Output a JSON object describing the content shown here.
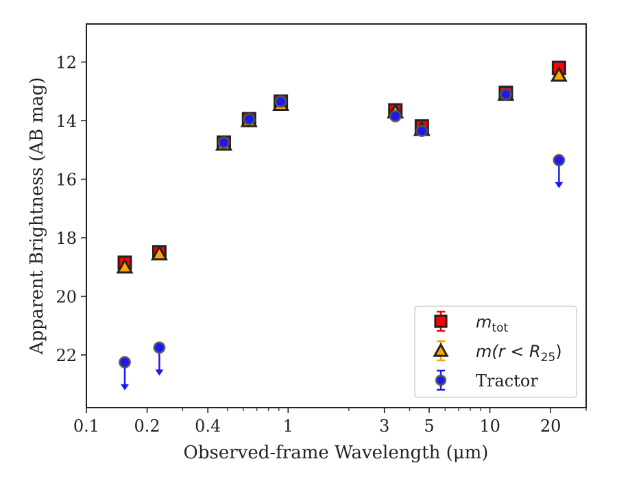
{
  "chart_data": {
    "type": "scatter",
    "xscale": "log",
    "xlim": [
      0.1,
      30
    ],
    "ylim": [
      10.7,
      23.8
    ],
    "yinverted": true,
    "xlabel": "Observed-frame Wavelength (μm)",
    "ylabel": "Apparent Brightness (AB mag)",
    "x_ticks": [
      {
        "value": 0.1,
        "label": "0.1"
      },
      {
        "value": 0.2,
        "label": "0.2"
      },
      {
        "value": 0.4,
        "label": "0.4"
      },
      {
        "value": 1,
        "label": "1"
      },
      {
        "value": 3,
        "label": "3"
      },
      {
        "value": 5,
        "label": "5"
      },
      {
        "value": 10,
        "label": "10"
      },
      {
        "value": 20,
        "label": "20"
      }
    ],
    "x_minor_ticks": [
      0.3,
      0.5,
      0.6,
      0.7,
      0.8,
      0.9,
      2,
      4,
      6,
      7,
      8,
      9,
      30
    ],
    "y_ticks": [
      {
        "value": 12,
        "label": "12"
      },
      {
        "value": 14,
        "label": "14"
      },
      {
        "value": 16,
        "label": "16"
      },
      {
        "value": 18,
        "label": "18"
      },
      {
        "value": 20,
        "label": "20"
      },
      {
        "value": 22,
        "label": "22"
      }
    ],
    "legend_position": "bottom-right",
    "series": [
      {
        "name": "m_tot",
        "marker": "square",
        "color": "#ff0000",
        "edge_color": "#222222",
        "points": [
          {
            "x": 0.155,
            "y": 18.85
          },
          {
            "x": 0.23,
            "y": 18.5
          },
          {
            "x": 0.48,
            "y": 14.75
          },
          {
            "x": 0.64,
            "y": 13.95
          },
          {
            "x": 0.92,
            "y": 13.35
          },
          {
            "x": 3.4,
            "y": 13.65
          },
          {
            "x": 4.6,
            "y": 14.2
          },
          {
            "x": 12.0,
            "y": 13.05
          },
          {
            "x": 22.0,
            "y": 12.2
          }
        ]
      },
      {
        "name": "m(r<R25)",
        "marker": "triangle",
        "color": "#ffa500",
        "edge_color": "#222222",
        "points": [
          {
            "x": 0.155,
            "y": 19.0
          },
          {
            "x": 0.23,
            "y": 18.55
          },
          {
            "x": 0.48,
            "y": 14.8
          },
          {
            "x": 0.64,
            "y": 14.0
          },
          {
            "x": 0.92,
            "y": 13.45
          },
          {
            "x": 3.4,
            "y": 13.7
          },
          {
            "x": 4.6,
            "y": 14.3
          },
          {
            "x": 12.0,
            "y": 13.1
          },
          {
            "x": 22.0,
            "y": 12.45
          }
        ]
      },
      {
        "name": "Tractor",
        "marker": "circle",
        "color": "#1a1aee",
        "edge_color": "#555555",
        "points": [
          {
            "x": 0.155,
            "y": 22.25,
            "upper_limit": true
          },
          {
            "x": 0.23,
            "y": 21.75,
            "upper_limit": true
          },
          {
            "x": 0.48,
            "y": 14.75
          },
          {
            "x": 0.64,
            "y": 13.95
          },
          {
            "x": 0.92,
            "y": 13.35
          },
          {
            "x": 3.4,
            "y": 13.85
          },
          {
            "x": 4.6,
            "y": 14.35
          },
          {
            "x": 12.0,
            "y": 13.1
          },
          {
            "x": 22.0,
            "y": 15.35,
            "upper_limit": true
          }
        ]
      }
    ],
    "legend": {
      "entries": [
        {
          "series": "m_tot",
          "label_main": "m",
          "label_sub": "tot",
          "label_rest": ""
        },
        {
          "series": "m(r<R25)",
          "label_main": "m(r < R",
          "label_sub": "25",
          "label_rest": ")"
        },
        {
          "series": "Tractor",
          "label_main": "Tractor",
          "label_sub": "",
          "label_rest": ""
        }
      ]
    }
  }
}
